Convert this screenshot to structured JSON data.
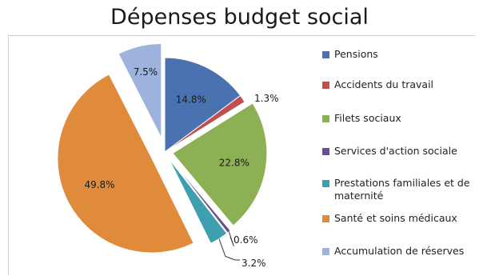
{
  "chart_data": {
    "type": "pie",
    "title": "Dépenses budget social",
    "slices": [
      {
        "label": "Pensions",
        "value": 14.8,
        "display": "14.8%",
        "color": "#4a72b0",
        "exploded": false
      },
      {
        "label": "Accidents du travail",
        "value": 1.3,
        "display": "1.3%",
        "color": "#c0504d",
        "exploded": false
      },
      {
        "label": "Filets sociaux",
        "value": 22.8,
        "display": "22.8%",
        "color": "#8cb054",
        "exploded": true
      },
      {
        "label": "Services d'action sociale",
        "value": 0.6,
        "display": "0.6%",
        "color": "#6a4e93",
        "exploded": true
      },
      {
        "label": "Prestations familiales et de maternité",
        "value": 3.2,
        "display": "3.2%",
        "color": "#3d9fb0",
        "exploded": true
      },
      {
        "label": "Santé et soins médicaux",
        "value": 49.8,
        "display": "49.8%",
        "color": "#e08a3c",
        "exploded": true
      },
      {
        "label": "Accumulation de réserves",
        "value": 7.5,
        "display": "7.5%",
        "color": "#9db3dc",
        "exploded": true
      }
    ],
    "legend_position": "right"
  }
}
